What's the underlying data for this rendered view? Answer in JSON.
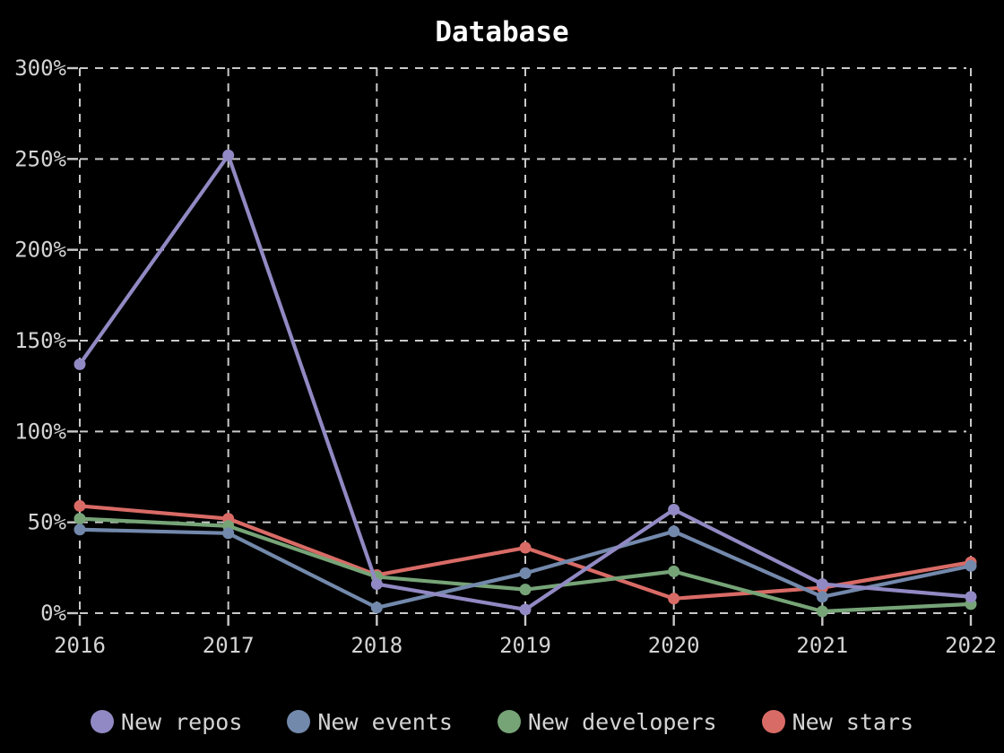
{
  "colors": {
    "background": "#000000",
    "grid": "#c9c9c9",
    "axis_label": "#d4d4d4",
    "title": "#fdfdfd"
  },
  "chart_data": {
    "type": "line",
    "title": "Database",
    "x": [
      "2016",
      "2017",
      "2018",
      "2019",
      "2020",
      "2021",
      "2022"
    ],
    "yticks": [
      "0%",
      "50%",
      "100%",
      "150%",
      "200%",
      "250%",
      "300%"
    ],
    "ylim": [
      0,
      300
    ],
    "ytick_step": 50,
    "grid": true,
    "grid_style": "dashed",
    "legend_position": "bottom",
    "series": [
      {
        "name": "New repos",
        "color": "#9189c3",
        "values": [
          137,
          252,
          16,
          2,
          57,
          16,
          9
        ]
      },
      {
        "name": "New events",
        "color": "#7389ac",
        "values": [
          46,
          44,
          3,
          22,
          45,
          9,
          26
        ]
      },
      {
        "name": "New developers",
        "color": "#76a477",
        "values": [
          52,
          48,
          20,
          13,
          23,
          1,
          5
        ]
      },
      {
        "name": "New stars",
        "color": "#d96b66",
        "values": [
          59,
          52,
          21,
          36,
          8,
          14,
          28
        ]
      }
    ]
  }
}
